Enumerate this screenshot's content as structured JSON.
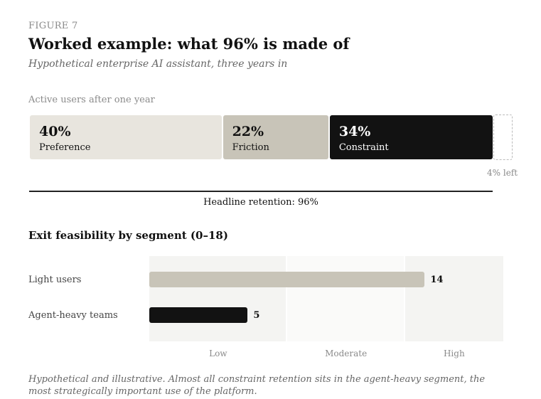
{
  "figure_label": "FIGURE 7",
  "title": "Worked example: what 96% is made of",
  "subtitle": "Hypothetical enterprise AI assistant, three years in",
  "retention_section": {
    "label": "Active users after one year",
    "segments": [
      {
        "pct": "40%",
        "value": 40,
        "label": "Preference",
        "color": "#e8e5de",
        "text_color": "#111111"
      },
      {
        "pct": "22%",
        "value": 22,
        "label": "Friction",
        "color": "#c8c4b8",
        "text_color": "#111111"
      },
      {
        "pct": "34%",
        "value": 34,
        "label": "Constraint",
        "color": "#121212",
        "text_color": "#ffffff"
      }
    ],
    "remaining": {
      "value": 4,
      "label": "4% left"
    },
    "headline": "Headline retention: 96%"
  },
  "chart_data": {
    "type": "bar",
    "orientation": "horizontal",
    "title": "Exit feasibility by segment (0–18)",
    "xlim": [
      0,
      18
    ],
    "zones": [
      {
        "label": "Low",
        "from": 0,
        "to": 7
      },
      {
        "label": "Moderate",
        "from": 7,
        "to": 13
      },
      {
        "label": "High",
        "from": 13,
        "to": 18
      }
    ],
    "categories": [
      "Light users",
      "Agent-heavy teams"
    ],
    "values": [
      14,
      5
    ],
    "bar_colors": [
      "#c8c4b8",
      "#121212"
    ]
  },
  "note": "Hypothetical and illustrative. Almost all constraint retention sits in the agent-heavy segment, the most strategically important use of the platform."
}
